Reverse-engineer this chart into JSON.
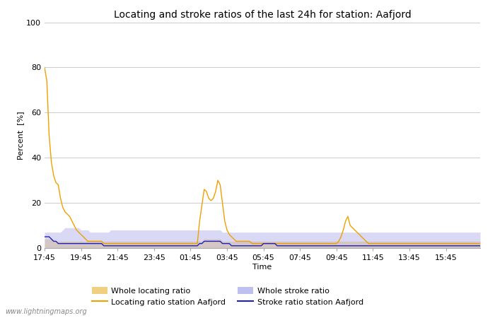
{
  "title": "Locating and stroke ratios of the last 24h for station: Aafjord",
  "xlabel": "Time",
  "ylabel": "Percent  [%]",
  "watermark": "www.lightningmaps.org",
  "ylim": [
    0,
    100
  ],
  "yticks": [
    0,
    20,
    40,
    60,
    80,
    100
  ],
  "xtick_labels": [
    "17:45",
    "19:45",
    "21:45",
    "23:45",
    "01:45",
    "03:45",
    "05:45",
    "07:45",
    "09:45",
    "11:45",
    "13:45",
    "15:45"
  ],
  "locating_station": [
    80,
    74,
    50,
    38,
    32,
    29,
    28,
    22,
    18,
    16,
    15,
    14,
    12,
    10,
    8,
    7,
    6,
    5,
    4,
    3,
    3,
    3,
    3,
    3,
    3,
    3,
    2,
    2,
    2,
    2,
    2,
    2,
    2,
    2,
    2,
    2,
    2,
    2,
    2,
    2,
    2,
    2,
    2,
    2,
    2,
    2,
    2,
    2,
    2,
    2,
    2,
    2,
    2,
    2,
    2,
    2,
    2,
    2,
    2,
    2,
    2,
    2,
    2,
    2,
    2,
    2,
    2,
    2,
    12,
    19,
    26,
    25,
    22,
    21,
    22,
    25,
    30,
    28,
    20,
    12,
    8,
    6,
    5,
    4,
    3,
    3,
    3,
    3,
    3,
    3,
    3,
    2,
    2,
    2,
    2,
    2,
    2,
    2,
    2,
    2,
    2,
    2,
    2,
    2,
    2,
    2,
    2,
    2,
    2,
    2,
    2,
    2,
    2,
    2,
    2,
    2,
    2,
    2,
    2,
    2,
    2,
    2,
    2,
    2,
    2,
    2,
    2,
    2,
    2,
    3,
    5,
    8,
    12,
    14,
    10,
    9,
    8,
    7,
    6,
    5,
    4,
    3,
    2,
    2,
    2,
    2,
    2,
    2,
    2,
    2,
    2,
    2,
    2,
    2,
    2,
    2,
    2,
    2,
    2,
    2,
    2,
    2,
    2,
    2,
    2,
    2,
    2,
    2,
    2,
    2,
    2,
    2,
    2,
    2,
    2,
    2,
    2,
    2,
    2,
    2,
    2,
    2,
    2,
    2,
    2,
    2,
    2,
    2,
    2,
    2,
    2,
    2
  ],
  "locating_whole": [
    4,
    4,
    4,
    4,
    3,
    3,
    3,
    3,
    3,
    3,
    3,
    3,
    3,
    3,
    3,
    3,
    3,
    3,
    3,
    3,
    3,
    3,
    3,
    3,
    3,
    3,
    3,
    3,
    3,
    3,
    3,
    3,
    3,
    3,
    3,
    3,
    3,
    3,
    3,
    3,
    3,
    3,
    3,
    3,
    3,
    3,
    3,
    3,
    3,
    3,
    3,
    3,
    3,
    3,
    3,
    3,
    3,
    3,
    3,
    3,
    3,
    3,
    3,
    3,
    3,
    3,
    3,
    3,
    3,
    3,
    4,
    4,
    4,
    4,
    4,
    4,
    4,
    4,
    3,
    3,
    3,
    3,
    3,
    3,
    3,
    3,
    3,
    3,
    3,
    3,
    3,
    3,
    3,
    3,
    3,
    3,
    3,
    3,
    3,
    3,
    3,
    3,
    3,
    3,
    3,
    3,
    3,
    3,
    3,
    3,
    3,
    3,
    3,
    3,
    3,
    3,
    3,
    3,
    3,
    3,
    3,
    3,
    3,
    3,
    3,
    3,
    3,
    3,
    3,
    3,
    3,
    3,
    3,
    3,
    3,
    3,
    3,
    3,
    3,
    3,
    3,
    3,
    3,
    3,
    3,
    3,
    3,
    3,
    3,
    3,
    3,
    3,
    3,
    3,
    3,
    3,
    3,
    3,
    3,
    3,
    3,
    3,
    3,
    3,
    3,
    3,
    3,
    3,
    3,
    3,
    3,
    3,
    3,
    3,
    3,
    3,
    3,
    3,
    3,
    3,
    3,
    3,
    3,
    3,
    3,
    3,
    3,
    3,
    3,
    3,
    3,
    3
  ],
  "stroke_station": [
    5,
    5,
    5,
    4,
    3,
    3,
    2,
    2,
    2,
    2,
    2,
    2,
    2,
    2,
    2,
    2,
    2,
    2,
    2,
    2,
    2,
    2,
    2,
    2,
    2,
    2,
    1,
    1,
    1,
    1,
    1,
    1,
    1,
    1,
    1,
    1,
    1,
    1,
    1,
    1,
    1,
    1,
    1,
    1,
    1,
    1,
    1,
    1,
    1,
    1,
    1,
    1,
    1,
    1,
    1,
    1,
    1,
    1,
    1,
    1,
    1,
    1,
    1,
    1,
    1,
    1,
    1,
    1,
    2,
    2,
    3,
    3,
    3,
    3,
    3,
    3,
    3,
    3,
    2,
    2,
    2,
    2,
    1,
    1,
    1,
    1,
    1,
    1,
    1,
    1,
    1,
    1,
    1,
    1,
    1,
    1,
    2,
    2,
    2,
    2,
    2,
    2,
    1,
    1,
    1,
    1,
    1,
    1,
    1,
    1,
    1,
    1,
    1,
    1,
    1,
    1,
    1,
    1,
    1,
    1,
    1,
    1,
    1,
    1,
    1,
    1,
    1,
    1,
    1,
    1,
    1,
    1,
    1,
    1,
    1,
    1,
    1,
    1,
    1,
    1,
    1,
    1,
    1,
    1,
    1,
    1,
    1,
    1,
    1,
    1,
    1,
    1,
    1,
    1,
    1,
    1,
    1,
    1,
    1,
    1,
    1,
    1,
    1,
    1,
    1,
    1,
    1,
    1,
    1,
    1,
    1,
    1,
    1,
    1,
    1,
    1,
    1,
    1,
    1,
    1,
    1,
    1,
    1,
    1,
    1,
    1,
    1,
    1,
    1,
    1,
    1,
    1
  ],
  "stroke_whole": [
    7,
    7,
    7,
    7,
    7,
    7,
    7,
    7,
    8,
    9,
    9,
    9,
    9,
    9,
    9,
    9,
    8,
    8,
    8,
    8,
    7,
    7,
    7,
    7,
    7,
    7,
    7,
    7,
    7,
    8,
    8,
    8,
    8,
    8,
    8,
    8,
    8,
    8,
    8,
    8,
    8,
    8,
    8,
    8,
    8,
    8,
    8,
    8,
    8,
    8,
    8,
    8,
    8,
    8,
    8,
    8,
    8,
    8,
    8,
    8,
    8,
    8,
    8,
    8,
    8,
    8,
    8,
    8,
    8,
    8,
    8,
    8,
    8,
    8,
    8,
    8,
    8,
    8,
    7,
    7,
    7,
    7,
    7,
    7,
    7,
    7,
    7,
    7,
    7,
    7,
    7,
    7,
    7,
    7,
    7,
    7,
    7,
    7,
    7,
    7,
    7,
    7,
    7,
    7,
    7,
    7,
    7,
    7,
    7,
    7,
    7,
    7,
    7,
    7,
    7,
    7,
    7,
    7,
    7,
    7,
    7,
    7,
    7,
    7,
    7,
    7,
    7,
    7,
    7,
    7,
    7,
    7,
    7,
    7,
    7,
    7,
    7,
    7,
    7,
    7,
    7,
    7,
    7,
    7,
    7,
    7,
    7,
    7,
    7,
    7,
    7,
    7,
    7,
    7,
    7,
    7,
    7,
    7,
    7,
    7,
    7,
    7,
    7,
    7,
    7,
    7,
    7,
    7,
    7,
    7,
    7,
    7,
    7,
    7,
    7,
    7,
    7,
    7,
    7,
    7,
    7,
    7,
    7,
    7,
    7,
    7,
    7,
    7,
    7,
    7,
    7,
    7
  ],
  "n_points": 192,
  "xtick_indices": [
    0,
    16,
    32,
    48,
    64,
    80,
    96,
    112,
    128,
    144,
    160,
    176
  ],
  "locating_station_color": "#f0a000",
  "locating_whole_color": "#f0d080",
  "stroke_station_color": "#2020c0",
  "stroke_whole_color": "#c0c0f0",
  "bg_color": "#ffffff",
  "plot_bg_color": "#ffffff",
  "grid_color": "#cccccc",
  "legend_labels": [
    "Whole locating ratio",
    "Locating ratio station Aafjord",
    "Whole stroke ratio",
    "Stroke ratio station Aafjord"
  ]
}
